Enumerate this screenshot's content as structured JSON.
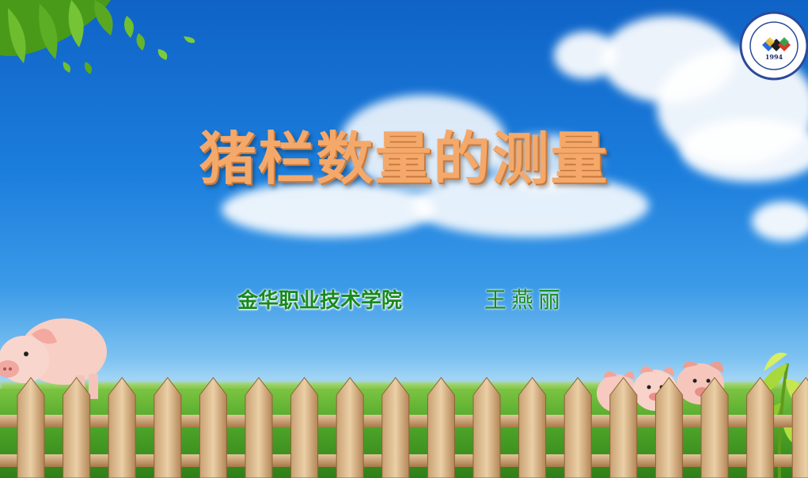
{
  "slide": {
    "title": "猪栏数量的测量",
    "school": "金华职业技术学院",
    "author": "王燕丽"
  },
  "logo": {
    "year": "1994",
    "arc_text": "JINHUA POLYTECHNIC",
    "arc_text_cn": "金华职业技术学院"
  },
  "colors": {
    "title": "#f4a96b",
    "subtitle": "#178a1e",
    "sky_top": "#0f63c6"
  },
  "icons": [
    "leaves-icon",
    "pig-icon",
    "fence-icon",
    "plant-icon",
    "school-logo-icon"
  ]
}
